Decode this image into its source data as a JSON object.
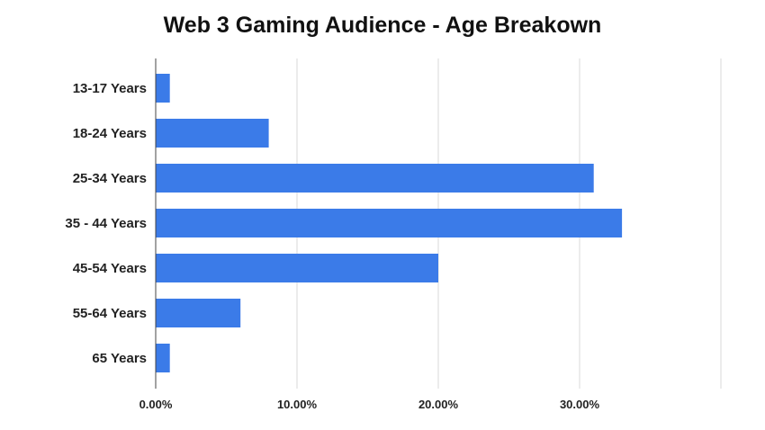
{
  "chart_data": {
    "type": "bar",
    "orientation": "horizontal",
    "title": "Web 3 Gaming Audience - Age Breakown",
    "categories": [
      "13-17 Years",
      "18-24 Years",
      "25-34 Years",
      "35 - 44 Years",
      "45-54 Years",
      "55-64 Years",
      "65 Years"
    ],
    "values": [
      1,
      8,
      31,
      33,
      20,
      6,
      1
    ],
    "value_unit": "%",
    "xlim": [
      0,
      40
    ],
    "xticks": [
      0,
      10,
      20,
      30,
      40
    ],
    "xtick_labels": [
      "0.00%",
      "10.00%",
      "20.00%",
      "30.00%",
      ""
    ],
    "xlabel": "",
    "ylabel": "",
    "grid": true,
    "legend": "none",
    "bar_color": "#3b7be8"
  }
}
